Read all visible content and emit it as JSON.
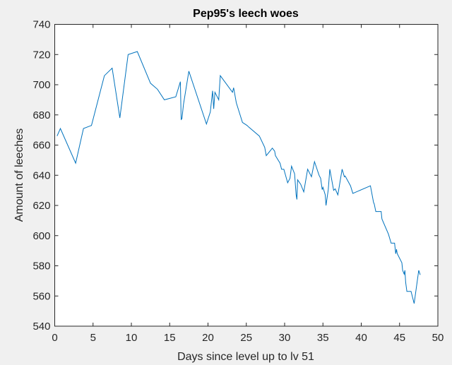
{
  "chart_data": {
    "type": "line",
    "title": "Pep95's leech woes",
    "xlabel": "Days since level up to lv 51",
    "ylabel": "Amount of leeches",
    "xlim": [
      0,
      50
    ],
    "ylim": [
      540,
      740
    ],
    "xticks": [
      0,
      5,
      10,
      15,
      20,
      25,
      30,
      35,
      40,
      45,
      50
    ],
    "yticks": [
      540,
      560,
      580,
      600,
      620,
      640,
      660,
      680,
      700,
      720,
      740
    ],
    "grid": false,
    "line_color": "#0072bd",
    "series": [
      {
        "name": "leeches",
        "x": [
          0.3,
          0.74,
          2.73,
          3.75,
          4.79,
          6.48,
          7.49,
          8.5,
          9.58,
          10.77,
          12.5,
          13.4,
          14.3,
          15.8,
          16.4,
          16.5,
          16.6,
          16.8,
          17.5,
          19.8,
          20.3,
          20.6,
          20.75,
          20.9,
          21.4,
          21.6,
          23.2,
          23.35,
          23.7,
          24.5,
          25.1,
          25.3,
          26.7,
          27.4,
          27.6,
          28.4,
          28.7,
          28.8,
          29.4,
          29.6,
          29.9,
          30.4,
          30.7,
          30.9,
          31.3,
          31.5,
          31.6,
          31.7,
          32.1,
          32.5,
          33.0,
          33.5,
          33.9,
          34.5,
          34.7,
          34.9,
          35.0,
          35.3,
          35.4,
          35.7,
          35.9,
          36.4,
          36.6,
          36.95,
          37.5,
          37.8,
          37.9,
          38.6,
          38.9,
          41.2,
          41.6,
          41.7,
          41.9,
          42.6,
          42.7,
          43.55,
          43.9,
          44.35,
          44.5,
          44.6,
          44.7,
          45.3,
          45.4,
          45.6,
          45.7,
          45.8,
          45.95,
          46.5,
          46.9,
          47.5,
          47.7
        ],
        "y": [
          666,
          671,
          648,
          671,
          673,
          706,
          711,
          678,
          720,
          722,
          701,
          697,
          690,
          692,
          702,
          677,
          677.5,
          687,
          709,
          674,
          682,
          696,
          684,
          695,
          690,
          706,
          695,
          698,
          688,
          675,
          673,
          672,
          666,
          658.5,
          653,
          658,
          656,
          653,
          648,
          644,
          644,
          635,
          638,
          646,
          641,
          627,
          624,
          637,
          634,
          629,
          644,
          639,
          649,
          640,
          638,
          630.5,
          632,
          627,
          620,
          630.5,
          644,
          630,
          631,
          627,
          644,
          639,
          639.5,
          633,
          628,
          633,
          622,
          621,
          616,
          616,
          611,
          601,
          595,
          595,
          588,
          591,
          588,
          582,
          577,
          574.5,
          577,
          569,
          563,
          563,
          555,
          577,
          574
        ]
      }
    ]
  }
}
